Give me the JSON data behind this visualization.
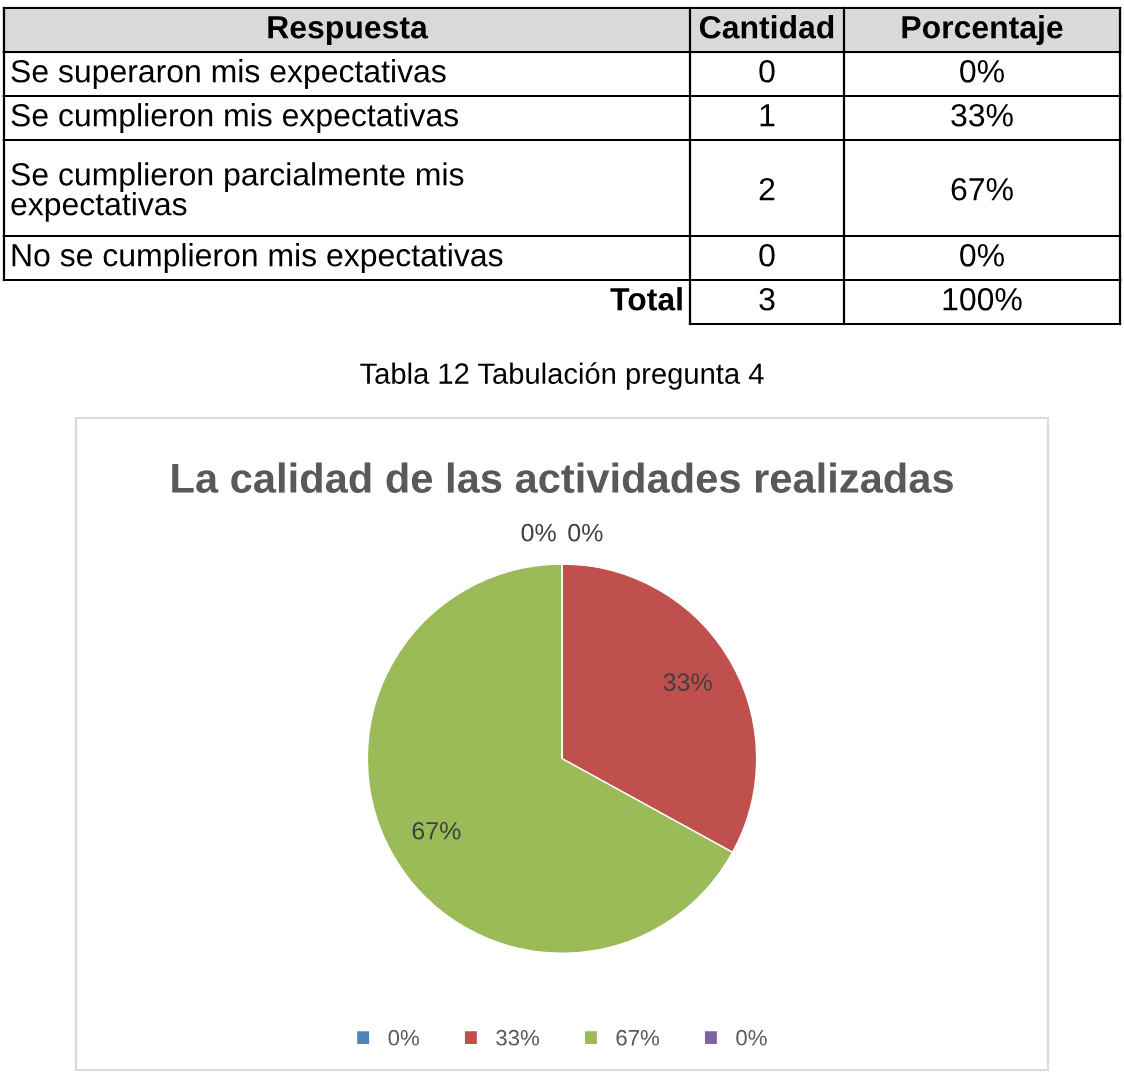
{
  "chart_data": [
    {
      "type": "other",
      "annotations": [
        "Respuesta",
        "Cantidad",
        "Porcentaje",
        "Se superaron mis expectativas",
        "0",
        "0%",
        "Se cumplieron mis expectativas",
        "1",
        "33%",
        "Se cumplieron parcialmente mis\nexpectativas",
        "2",
        "67%",
        "No se cumplieron mis expectativas",
        "0",
        "0%",
        "Total",
        "3",
        "100%"
      ]
    },
    {
      "type": "pie",
      "title": "La calidad de las actividades realizadas",
      "annotations": [
        "Tabla 12 Tabulación pregunta 4"
      ],
      "categories": [
        "0%",
        "33%",
        "67%",
        "0%"
      ],
      "values": [
        0,
        33,
        67,
        0
      ],
      "colors": [
        "#4f81bd",
        "#c0504d",
        "#9bbb59",
        "#8064a2"
      ],
      "value_labels": [
        "0%",
        "33%",
        "67%",
        "0%"
      ],
      "legend": "bottom"
    }
  ]
}
